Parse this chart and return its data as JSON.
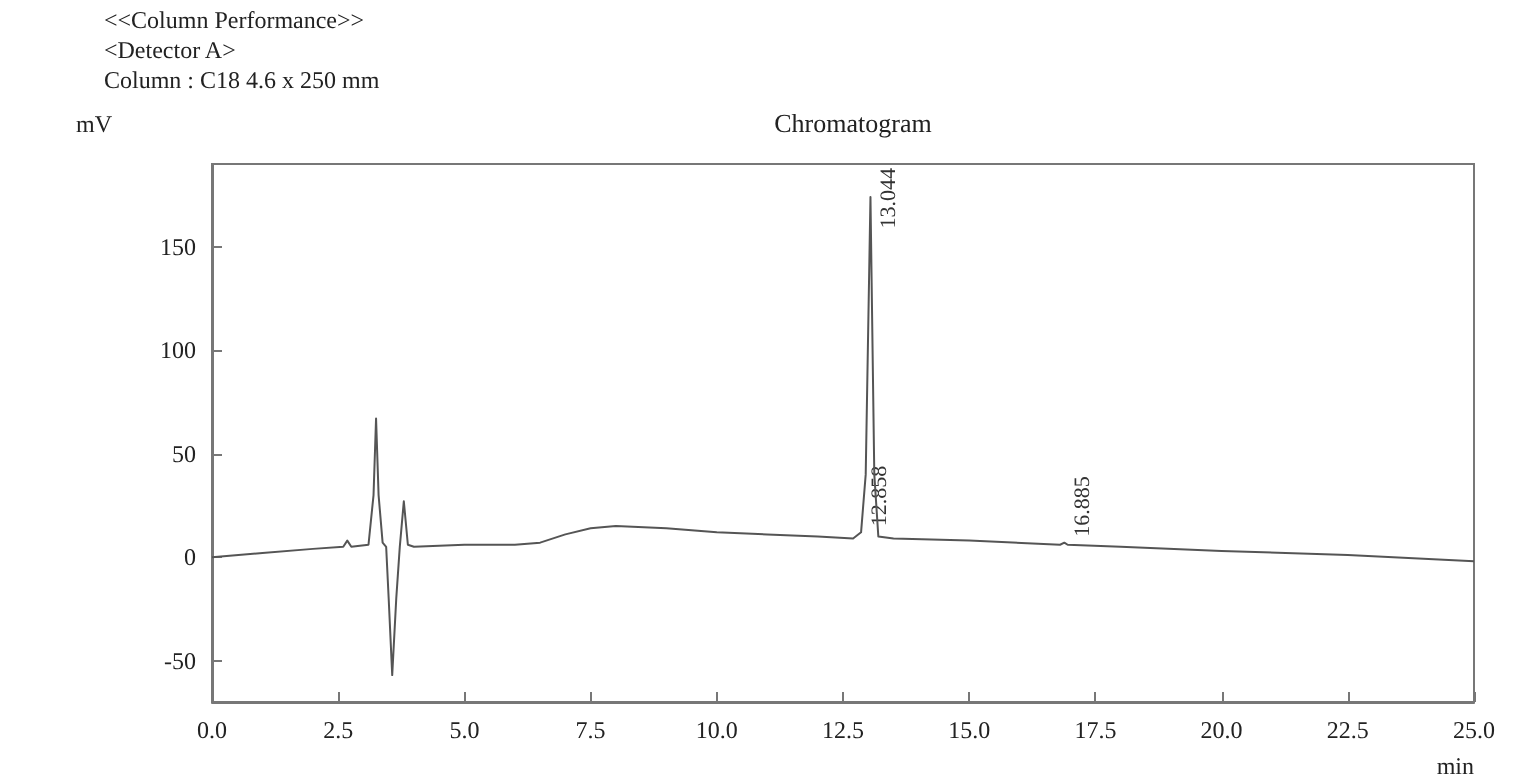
{
  "chart_data": {
    "type": "line",
    "title": "Chromatogram",
    "xlabel": "min",
    "ylabel": "mV",
    "annotations": [
      "<<Column Performance>>",
      "<Detector A>",
      "Column : C18 4.6 x 250 mm",
      {
        "text": "13.044",
        "x": 13.044,
        "y": 174
      },
      {
        "text": "12.858",
        "x": 12.858,
        "y": 12
      },
      {
        "text": "16.885",
        "x": 16.885,
        "y": 7
      }
    ],
    "series": [
      {
        "color": "#555555",
        "x": [
          0,
          1,
          2,
          2.6,
          2.68,
          2.76,
          3.1,
          3.2,
          3.25,
          3.3,
          3.38,
          3.45,
          3.5,
          3.57,
          3.65,
          3.72,
          3.8,
          3.88,
          4,
          5,
          6,
          6.5,
          7,
          7.5,
          8,
          9,
          10,
          11,
          12,
          12.7,
          12.858,
          12.95,
          13.044,
          13.12,
          13.2,
          13.5,
          15,
          16.8,
          16.885,
          16.95,
          18,
          20,
          22.5,
          25
        ],
        "values": [
          0,
          2,
          4,
          5,
          8,
          5,
          6,
          30,
          67,
          30,
          7,
          5,
          -20,
          -57,
          -20,
          5,
          27,
          6,
          5,
          6,
          6,
          7,
          11,
          14,
          15,
          14,
          12,
          11,
          10,
          9,
          12,
          40,
          174,
          40,
          10,
          9,
          8,
          6,
          7,
          6,
          5,
          3,
          1,
          -2
        ]
      }
    ],
    "xlim": [
      0,
      25
    ],
    "ylim": [
      -70,
      190
    ],
    "xticks": [
      {
        "value": 0,
        "label": "0.0"
      },
      {
        "value": 2.5,
        "label": "2.5"
      },
      {
        "value": 5,
        "label": "5.0"
      },
      {
        "value": 7.5,
        "label": "7.5"
      },
      {
        "value": 10,
        "label": "10.0"
      },
      {
        "value": 12.5,
        "label": "12.5"
      },
      {
        "value": 15,
        "label": "15.0"
      },
      {
        "value": 17.5,
        "label": "17.5"
      },
      {
        "value": 20,
        "label": "20.0"
      },
      {
        "value": 22.5,
        "label": "22.5"
      },
      {
        "value": 25,
        "label": "25.0"
      }
    ],
    "yticks": [
      -50,
      0,
      50,
      100,
      150
    ],
    "grid": false,
    "marker": "none",
    "line_style": "solid"
  }
}
